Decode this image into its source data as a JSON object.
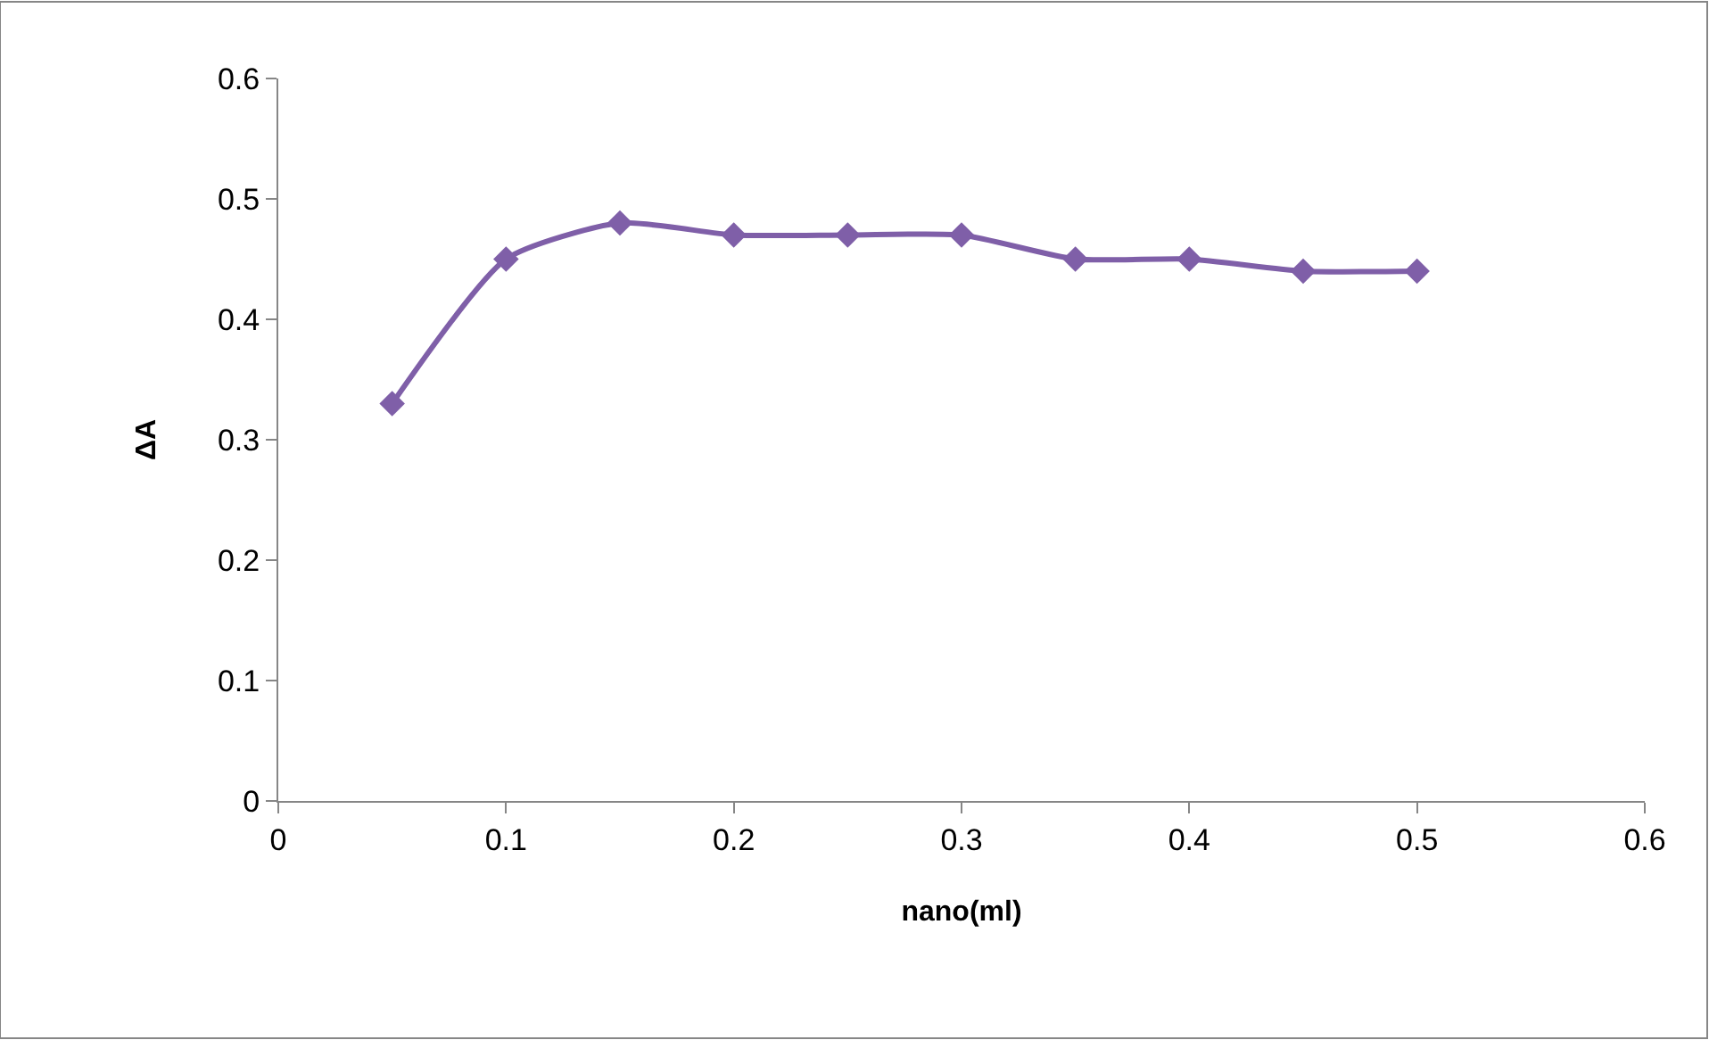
{
  "chart_data": {
    "type": "line",
    "xlabel": "nano(ml)",
    "ylabel": "ΔA",
    "x": [
      0.05,
      0.1,
      0.15,
      0.2,
      0.25,
      0.3,
      0.35,
      0.4,
      0.45,
      0.5
    ],
    "series": [
      {
        "color": "#7f5fa8",
        "values": [
          0.33,
          0.45,
          0.48,
          0.47,
          0.47,
          0.47,
          0.45,
          0.45,
          0.44,
          0.44
        ]
      }
    ],
    "xlim": [
      0,
      0.6
    ],
    "xticks": [
      0,
      0.1,
      0.2,
      0.3,
      0.4,
      0.5,
      0.6
    ],
    "ylim": [
      0,
      0.6
    ],
    "yticks": [
      0,
      0.1,
      0.2,
      0.3,
      0.4,
      0.5,
      0.6
    ],
    "marker": "diamond",
    "line_style": "solid"
  }
}
